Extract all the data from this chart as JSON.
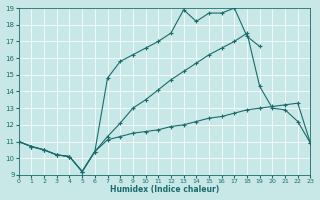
{
  "xlabel": "Humidex (Indice chaleur)",
  "bg_color": "#c8e8e8",
  "line_color": "#1a6b6b",
  "grid_color": "#ffffff",
  "xlim": [
    0,
    23
  ],
  "ylim": [
    9,
    19
  ],
  "xticks": [
    0,
    1,
    2,
    3,
    4,
    5,
    6,
    7,
    8,
    9,
    10,
    11,
    12,
    13,
    14,
    15,
    16,
    17,
    18,
    19,
    20,
    21,
    22,
    23
  ],
  "yticks": [
    9,
    10,
    11,
    12,
    13,
    14,
    15,
    16,
    17,
    18,
    19
  ],
  "line1_x": [
    0,
    1,
    2,
    3,
    4,
    5,
    6,
    7,
    8,
    9,
    10,
    11,
    12,
    13,
    14,
    15,
    16,
    17,
    18,
    19,
    20,
    21,
    22,
    23
  ],
  "line1_y": [
    11,
    10.7,
    10.5,
    10.2,
    10.1,
    9.2,
    10.4,
    11.1,
    11.3,
    11.5,
    11.6,
    11.7,
    11.9,
    12.0,
    12.2,
    12.4,
    12.5,
    12.7,
    12.9,
    13.0,
    13.1,
    13.2,
    13.3,
    10.9
  ],
  "line2_x": [
    0,
    1,
    2,
    3,
    4,
    5,
    6,
    7,
    8,
    9,
    10,
    11,
    12,
    13,
    14,
    15,
    16,
    17,
    18,
    19,
    20
  ],
  "line2_y": [
    11,
    10.7,
    10.5,
    10.2,
    10.1,
    9.2,
    10.4,
    14.8,
    15.8,
    16.2,
    16.6,
    17.0,
    17.5,
    18.9,
    18.2,
    18.7,
    18.7,
    19.0,
    17.3,
    16.7,
    null
  ],
  "line3_x": [
    0,
    1,
    2,
    3,
    4,
    5,
    6,
    7,
    8,
    9,
    10,
    11,
    12,
    13,
    14,
    15,
    16,
    17,
    18,
    19,
    20,
    21,
    22,
    23
  ],
  "line3_y": [
    11,
    10.7,
    10.5,
    10.2,
    10.1,
    9.2,
    10.4,
    11.3,
    12.1,
    13.0,
    13.5,
    14.1,
    14.7,
    15.2,
    15.7,
    16.2,
    16.6,
    17.0,
    17.5,
    14.3,
    13.0,
    12.9,
    12.2,
    10.9
  ]
}
